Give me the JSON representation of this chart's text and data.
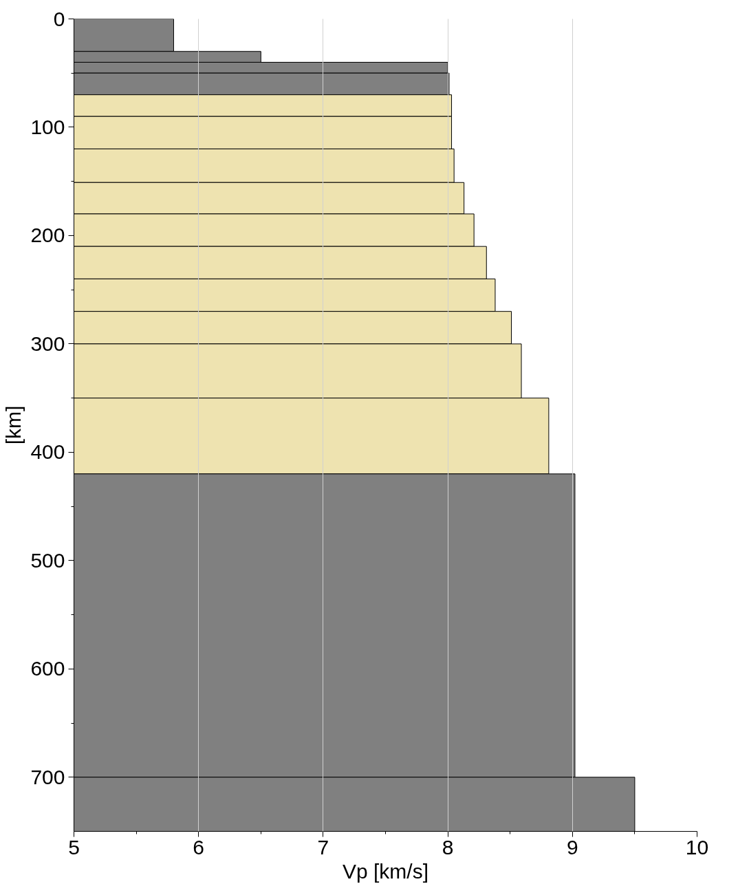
{
  "chart_data": {
    "type": "histogram",
    "orientation": "horizontal",
    "xlabel": "Vp [km/s]",
    "ylabel": "[km]",
    "bins": [
      0,
      30,
      40,
      50,
      70,
      90,
      120,
      151,
      180,
      210,
      240,
      270,
      300,
      350,
      420,
      700,
      750
    ],
    "values": [
      5.8,
      6.5,
      8.0,
      8.01,
      8.03,
      8.03,
      8.05,
      8.13,
      8.21,
      8.31,
      8.38,
      8.51,
      8.59,
      8.81,
      9.02,
      9.5
    ],
    "colors": [
      "#808080",
      "#808080",
      "#808080",
      "#808080",
      "#eee3b0",
      "#eee3b0",
      "#eee3b0",
      "#eee3b0",
      "#eee3b0",
      "#eee3b0",
      "#eee3b0",
      "#eee3b0",
      "#eee3b0",
      "#eee3b0",
      "#808080",
      "#808080"
    ],
    "xlim": [
      5,
      10
    ],
    "xticks": [
      5,
      6,
      7,
      8,
      9,
      10
    ],
    "ylim": [
      750,
      0
    ],
    "yticks": [
      0,
      100,
      200,
      300,
      400,
      500,
      600,
      700
    ],
    "grid": "x"
  }
}
